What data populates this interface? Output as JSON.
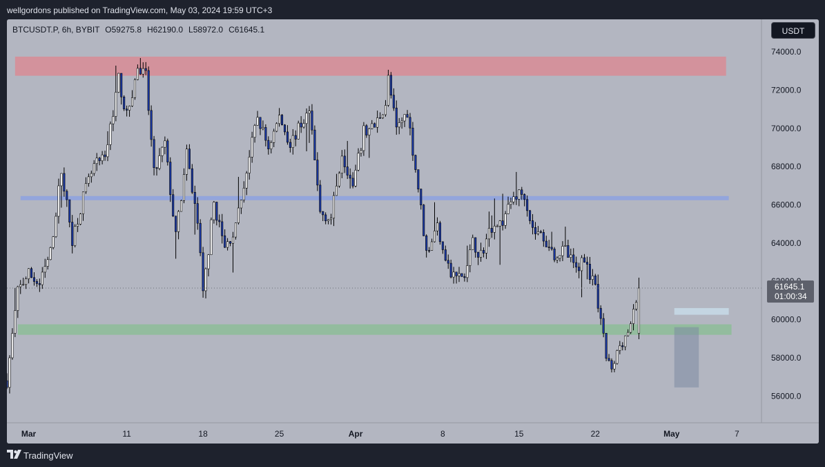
{
  "header": {
    "published_text": "wellgordons published on TradingView.com, May 03, 2024 19:59 UTC+3"
  },
  "symbol_line": {
    "symbol": "BTCUSDT.P, 6h, BYBIT",
    "open": "O59275.8",
    "high": "H62190.0",
    "low": "L58972.0",
    "close": "C61645.1"
  },
  "currency": "USDT",
  "brand": "TradingView",
  "last_price": {
    "value": "61645.1",
    "countdown": "01:00:34"
  },
  "colors": {
    "background": "#b3b6c1",
    "candle_up": "#ffffff",
    "candle_down": "#1a39a8",
    "wick": "#000000",
    "resistance_zone": "#d68e98",
    "support_zone": "#8fbd9a",
    "mid_line": "#8fa3df",
    "small_zone": "#c7dae8",
    "box": "#7c8aa3"
  },
  "chart_data": {
    "type": "candlestick",
    "title": "BTCUSDT.P, 6h, BYBIT",
    "x_tick_labels": [
      "Mar",
      "11",
      "18",
      "25",
      "Apr",
      "8",
      "15",
      "22",
      "May",
      "7"
    ],
    "x_tick_bars": [
      0,
      36,
      64,
      92,
      120,
      152,
      180,
      208,
      236,
      260
    ],
    "y_tick_labels": [
      "74000.0",
      "72000.0",
      "70000.0",
      "68000.0",
      "66000.0",
      "64000.0",
      "62000.0",
      "60000.0",
      "58000.0",
      "56000.0"
    ],
    "ylim": [
      54600,
      75700
    ],
    "x_bar_range": [
      -8,
      269
    ],
    "annotations": {
      "resistance_zone": {
        "from_bar": -5,
        "to_bar": 256,
        "price_top": 73750,
        "price_bottom": 72750
      },
      "mid_line": {
        "from_bar": -3,
        "to_bar": 257,
        "price": 66350
      },
      "support_zone": {
        "from_bar": -4,
        "to_bar": 258,
        "price_top": 59750,
        "price_bottom": 59200
      },
      "small_zone": {
        "from_bar": 237,
        "to_bar": 257,
        "price_top": 60600,
        "price_bottom": 60250
      },
      "price_box": {
        "from_bar": 237,
        "to_bar": 246,
        "price_top": 59600,
        "price_bottom": 56450
      }
    },
    "anchors": [
      [
        -8,
        56800
      ],
      [
        -4,
        61500
      ],
      [
        0,
        62400
      ],
      [
        4,
        61800
      ],
      [
        8,
        63500
      ],
      [
        12,
        67800
      ],
      [
        16,
        64200
      ],
      [
        20,
        66400
      ],
      [
        24,
        68000
      ],
      [
        28,
        68400
      ],
      [
        33,
        72600
      ],
      [
        36,
        70600
      ],
      [
        40,
        73100
      ],
      [
        43,
        72700
      ],
      [
        46,
        67600
      ],
      [
        50,
        69200
      ],
      [
        54,
        64300
      ],
      [
        58,
        68600
      ],
      [
        62,
        65100
      ],
      [
        64,
        61300
      ],
      [
        68,
        66100
      ],
      [
        72,
        63700
      ],
      [
        76,
        64800
      ],
      [
        80,
        67800
      ],
      [
        84,
        70600
      ],
      [
        88,
        69000
      ],
      [
        92,
        70600
      ],
      [
        96,
        69200
      ],
      [
        100,
        70200
      ],
      [
        103,
        70900
      ],
      [
        107,
        65600
      ],
      [
        111,
        65300
      ],
      [
        115,
        68800
      ],
      [
        119,
        66900
      ],
      [
        123,
        69800
      ],
      [
        127,
        70100
      ],
      [
        131,
        71300
      ],
      [
        132,
        72600
      ],
      [
        135,
        69900
      ],
      [
        139,
        70900
      ],
      [
        143,
        66900
      ],
      [
        146,
        63500
      ],
      [
        150,
        64900
      ],
      [
        155,
        62300
      ],
      [
        160,
        62200
      ],
      [
        163,
        64000
      ],
      [
        166,
        63400
      ],
      [
        170,
        64900
      ],
      [
        174,
        65100
      ],
      [
        178,
        66500
      ],
      [
        182,
        66600
      ],
      [
        185,
        64700
      ],
      [
        189,
        64300
      ],
      [
        193,
        63400
      ],
      [
        197,
        63600
      ],
      [
        201,
        62600
      ],
      [
        204,
        63300
      ],
      [
        208,
        61500
      ],
      [
        212,
        58100
      ],
      [
        214,
        57200
      ],
      [
        217,
        58700
      ],
      [
        221,
        59600
      ],
      [
        224,
        61645
      ]
    ]
  }
}
